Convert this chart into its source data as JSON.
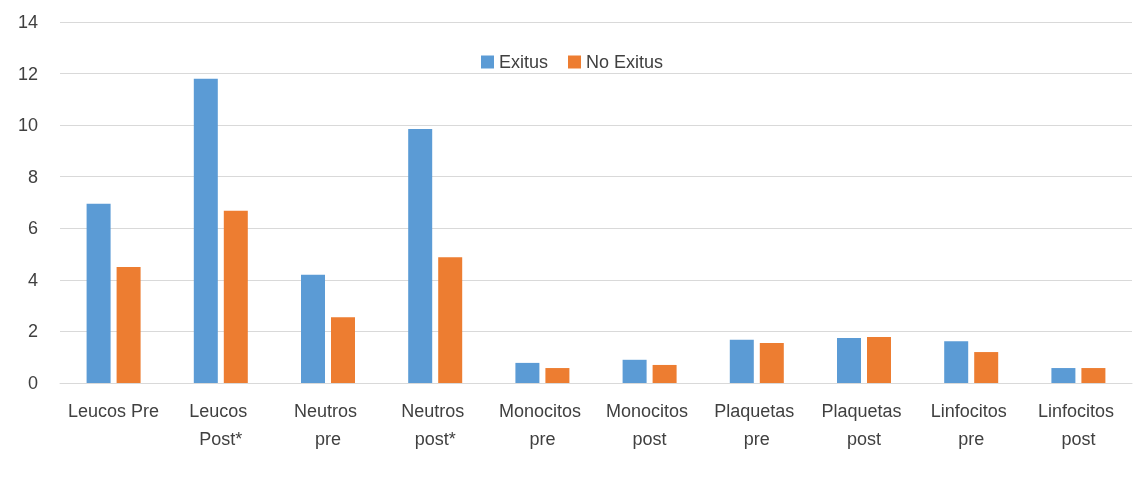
{
  "chart_data": {
    "type": "bar",
    "categories": [
      "Leucos Pre",
      "Leucos Post*",
      "Neutros pre",
      "Neutros post*",
      "Monocitos pre",
      "Monocitos post",
      "Plaquetas pre",
      "Plaquetas post",
      "Linfocitos pre",
      "Linfocitos post"
    ],
    "series": [
      {
        "name": "Exitus",
        "color": "#5b9bd5",
        "values": [
          6.95,
          11.8,
          4.2,
          9.85,
          0.78,
          0.9,
          1.68,
          1.75,
          1.62,
          0.58
        ]
      },
      {
        "name": "No Exitus",
        "color": "#ed7d31",
        "values": [
          4.5,
          6.68,
          2.55,
          4.88,
          0.58,
          0.7,
          1.55,
          1.78,
          1.2,
          0.58
        ]
      }
    ],
    "ylim": [
      0,
      14
    ],
    "yticks": [
      0,
      2,
      4,
      6,
      8,
      10,
      12,
      14
    ],
    "grid": "y",
    "legend": "top"
  }
}
